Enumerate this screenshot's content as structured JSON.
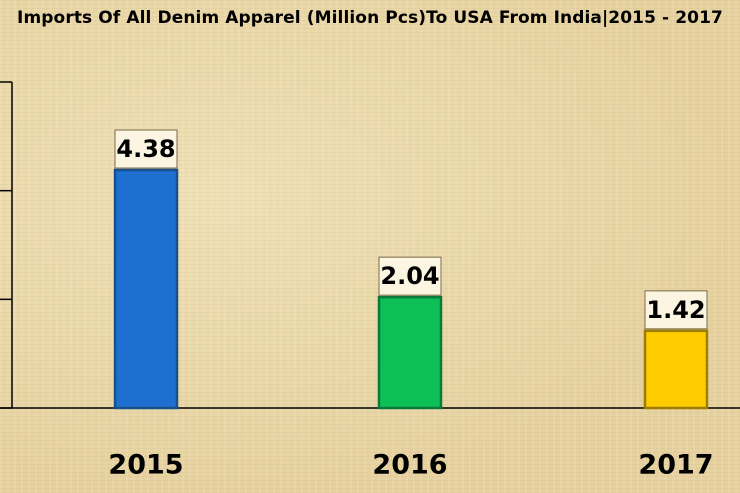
{
  "chart_data": {
    "type": "bar",
    "title": "Imports Of All Denim Apparel (Million Pcs)To USA From India|2015 - 2017",
    "xlabel": "",
    "ylabel": "",
    "categories": [
      "2015",
      "2016",
      "2017"
    ],
    "values": [
      4.38,
      2.04,
      1.42
    ],
    "ylim": [
      0,
      6
    ],
    "grid": false,
    "colors": {
      "bars": [
        "#1f6fd1",
        "#0dbf57",
        "#ffcc00"
      ],
      "bar_borders": [
        "#16508f",
        "#0a7a3a",
        "#9c7d00"
      ],
      "label_box_fill": "#fbf5e2",
      "axis": "#000000"
    }
  }
}
